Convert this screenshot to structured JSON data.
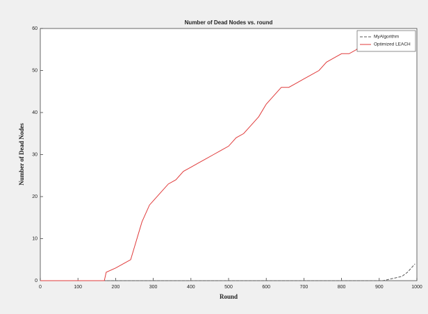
{
  "chart_data": {
    "type": "line",
    "title": "Number of Dead Nodes vs. round",
    "x_label": "Round",
    "y_label": "Number of Dead Nodes",
    "xlim": [
      0,
      1000
    ],
    "xticks": [
      0,
      100,
      200,
      300,
      400,
      500,
      600,
      700,
      800,
      900,
      1000
    ],
    "ylim": [
      0,
      60
    ],
    "yticks": [
      0,
      10,
      20,
      30,
      40,
      50,
      60
    ],
    "legend": "upper-right",
    "series": [
      {
        "name": "MyAlgorithm",
        "color": "#555555",
        "dash": true,
        "x": [
          0,
          910,
          960,
          975,
          985,
          995
        ],
        "values": [
          0,
          0,
          1,
          2,
          3,
          4
        ]
      },
      {
        "name": "Optimized LEACH",
        "color": "#e03a3a",
        "dash": false,
        "x": [
          0,
          170,
          175,
          200,
          220,
          240,
          250,
          260,
          270,
          280,
          290,
          300,
          320,
          340,
          360,
          380,
          400,
          420,
          440,
          460,
          480,
          500,
          520,
          540,
          560,
          580,
          600,
          620,
          640,
          660,
          680,
          700,
          720,
          740,
          760,
          780,
          800,
          820,
          840,
          850
        ],
        "values": [
          0,
          0,
          2,
          3,
          4,
          5,
          8,
          11,
          14,
          16,
          18,
          19,
          21,
          23,
          24,
          26,
          27,
          28,
          29,
          30,
          31,
          32,
          34,
          35,
          37,
          39,
          42,
          44,
          46,
          46,
          47,
          48,
          49,
          50,
          52,
          53,
          54,
          54,
          55,
          56
        ]
      }
    ]
  }
}
